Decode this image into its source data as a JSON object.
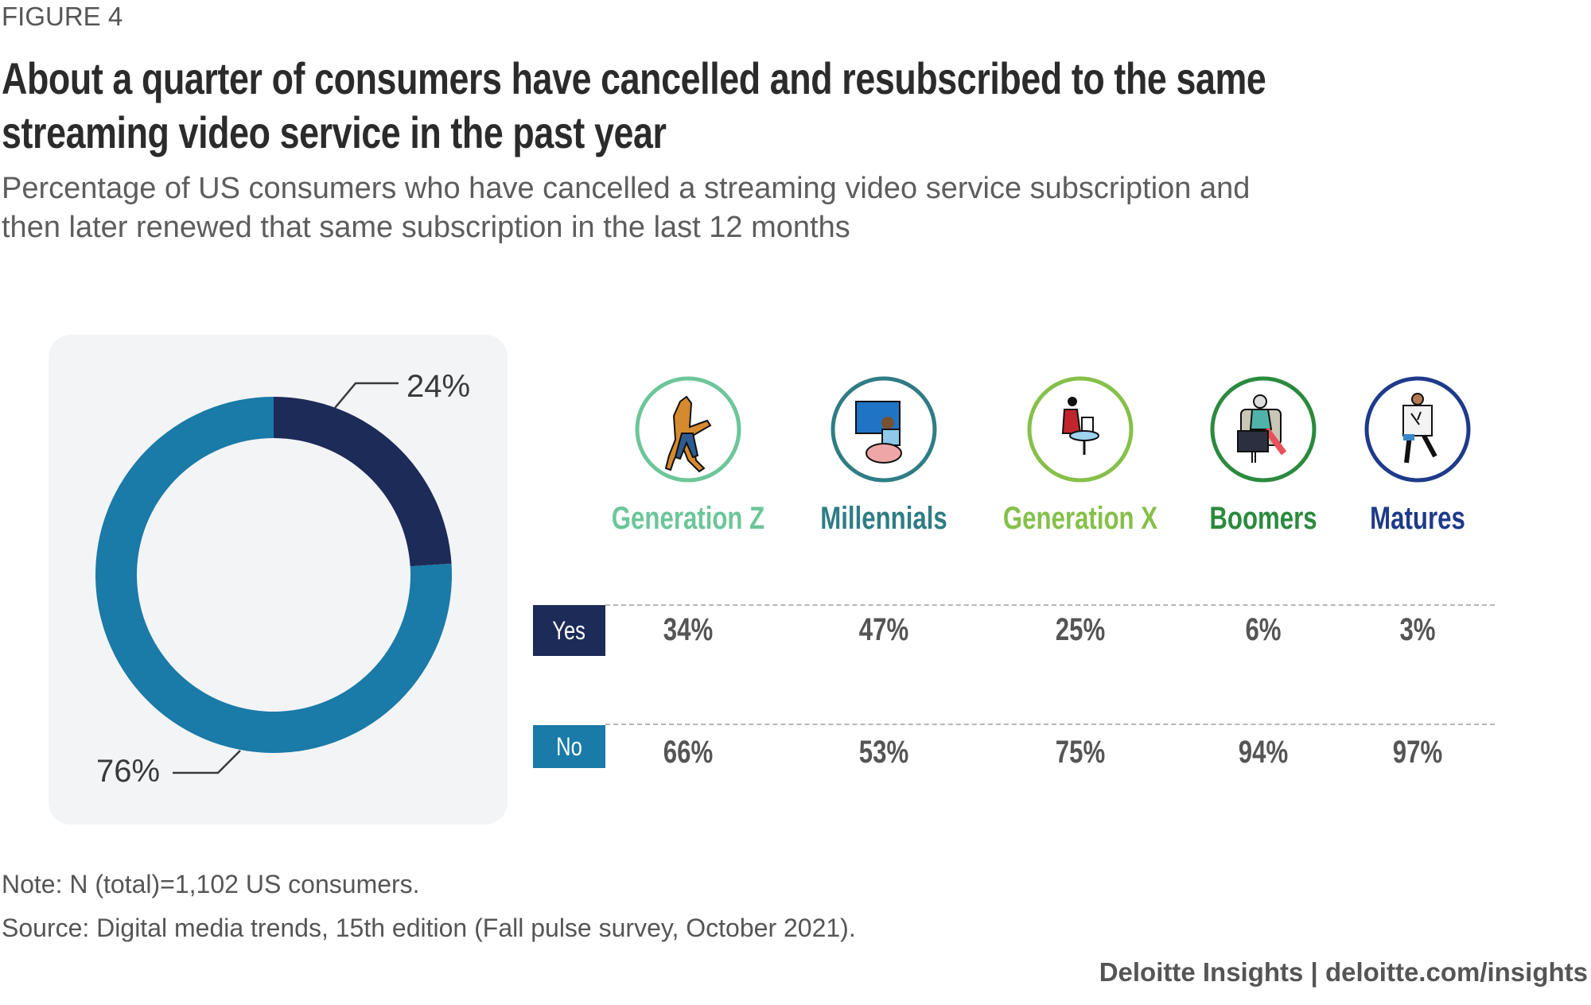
{
  "figure_label": "FIGURE 4",
  "title_lines": [
    "About a quarter of consumers have cancelled and resubscribed to the same",
    "streaming video service in the past year"
  ],
  "subtitle_lines": [
    "Percentage of US consumers who have cancelled a streaming video service subscription and",
    "then later renewed that same subscription in the last 12 months"
  ],
  "colors": {
    "yes": "#1d2b59",
    "no": "#1a7aa8",
    "panel": "#f3f4f6"
  },
  "chart_data": [
    {
      "type": "pie",
      "variant": "donut",
      "slices": [
        {
          "category": "Yes",
          "value": 24,
          "label": "24%",
          "color": "#1d2b59"
        },
        {
          "category": "No",
          "value": 76,
          "label": "76%",
          "color": "#1a7aa8"
        }
      ]
    },
    {
      "type": "table",
      "columns": [
        {
          "name": "Generation Z",
          "color": "#6cc69a",
          "icon": "gen-z-person-icon"
        },
        {
          "name": "Millennials",
          "color": "#2f7d84",
          "icon": "millennial-gaming-icon"
        },
        {
          "name": "Generation X",
          "color": "#86c04a",
          "icon": "gen-x-laptop-icon"
        },
        {
          "name": "Boomers",
          "color": "#2b8a3e",
          "icon": "boomer-armchair-tv-icon"
        },
        {
          "name": "Matures",
          "color": "#1e3a8a",
          "icon": "mature-newspaper-icon"
        }
      ],
      "rows": [
        {
          "label": "Yes",
          "color": "#1d2b59",
          "values": [
            "34%",
            "47%",
            "25%",
            "6%",
            "3%"
          ]
        },
        {
          "label": "No",
          "color": "#1a7aa8",
          "values": [
            "66%",
            "53%",
            "75%",
            "94%",
            "97%"
          ]
        }
      ]
    }
  ],
  "note": "Note: N (total)=1,102 US consumers.",
  "source": "Source: Digital media trends, 15th edition (Fall pulse survey, October 2021).",
  "footer": "Deloitte Insights | deloitte.com/insights"
}
